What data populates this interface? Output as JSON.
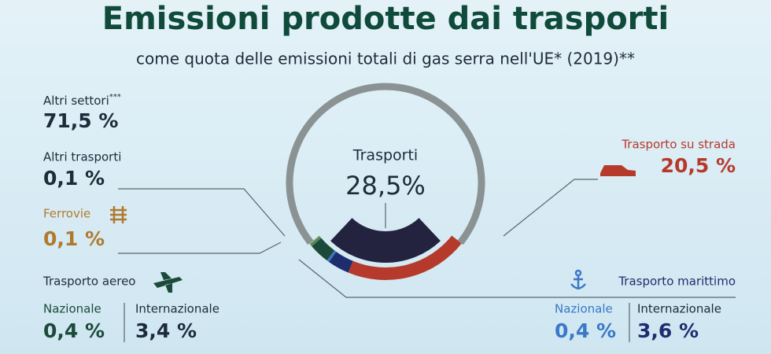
{
  "chart_data": {
    "type": "donut",
    "title": "Emissioni prodotte dai trasporti",
    "subtitle": "come quota delle emissioni totali di gas serra nell'UE* (2019)**",
    "center_label": "Trasporti",
    "center_value": 28.5,
    "center_value_label": "28,5%",
    "center_color": "#23233f",
    "segments": [
      {
        "name": "Altri settori",
        "note": "***",
        "value": 71.5,
        "value_label": "71,5 %",
        "color": "#8a9294"
      },
      {
        "name": "Altri trasporti",
        "value": 0.1,
        "value_label": "0,1 %",
        "color": "#9aa7a0"
      },
      {
        "name": "Ferrovie",
        "value": 0.1,
        "value_label": "0,1 %",
        "color": "#b07a2e"
      },
      {
        "name": "Trasporto su strada",
        "value": 20.5,
        "value_label": "20,5 %",
        "color": "#b63a2c"
      }
    ],
    "air": {
      "name": "Trasporto aereo",
      "segments": [
        {
          "name": "Nazionale",
          "value": 0.4,
          "value_label": "0,4 %",
          "color": "#3f8f5a"
        },
        {
          "name": "Internazionale",
          "value": 3.4,
          "value_label": "3,4 %",
          "color": "#1c4a3a"
        }
      ]
    },
    "sea": {
      "name": "Trasporto marittimo",
      "segments": [
        {
          "name": "Nazionale",
          "value": 0.4,
          "value_label": "0,4 %",
          "color": "#3a78c8"
        },
        {
          "name": "Internazionale",
          "value": 3.6,
          "value_label": "3,6 %",
          "color": "#1e2d6e"
        }
      ]
    }
  }
}
